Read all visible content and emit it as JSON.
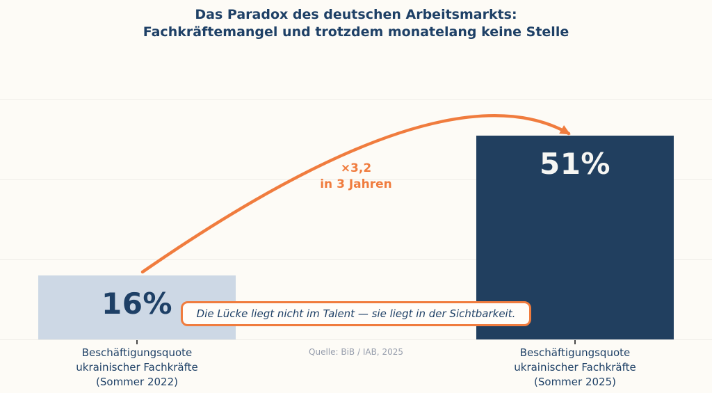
{
  "title": "Das Paradox des deutschen Arbeitsmarkts:\nFachkräftemangel und trotzdem monatelang keine Stelle",
  "chart_data": {
    "type": "bar",
    "categories": [
      "Beschäftigungsquote\nukrainischer Fachkräfte\n(Sommer 2022)",
      "Beschäftigungsquote\nukrainischer Fachkräfte\n(Sommer 2025)"
    ],
    "values": [
      16,
      51
    ],
    "value_labels": [
      "16%",
      "51%"
    ],
    "unit": "%",
    "ylim": [
      0,
      62
    ],
    "gridlines_at": [
      20,
      40,
      60
    ],
    "grid": true,
    "legend": false,
    "bar_colors": [
      "#cdd8e5",
      "#213f5f"
    ],
    "annotations": {
      "multiplier": "×3,2\nin 3 Jahren",
      "callout": "Die Lücke liegt nicht im Talent — sie liegt in der Sichtbarkeit.",
      "source": "Quelle: BiB / IAB, 2025"
    }
  },
  "colors": {
    "background": "#fdfbf6",
    "navy_text": "#1e4066",
    "bar_light": "#cdd8e5",
    "bar_dark": "#213f5f",
    "accent_orange": "#f07c3e",
    "gridline": "#eeece7",
    "source_gray": "#969dac"
  }
}
